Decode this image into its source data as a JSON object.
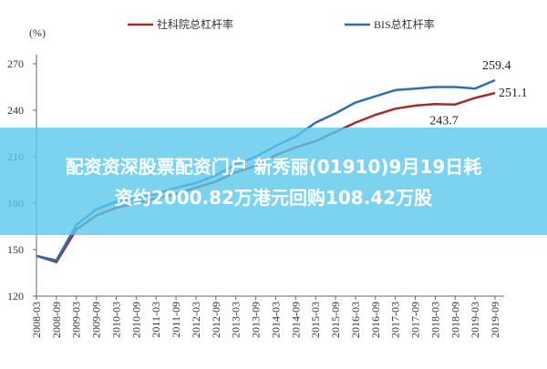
{
  "chart_data": {
    "type": "line",
    "y_unit": "(%)",
    "categories": [
      "2008-03",
      "2008-09",
      "2009-03",
      "2009-09",
      "2010-03",
      "2010-09",
      "2011-03",
      "2011-09",
      "2012-03",
      "2012-09",
      "2013-03",
      "2013-09",
      "2014-03",
      "2014-09",
      "2015-03",
      "2015-09",
      "2016-03",
      "2016-09",
      "2017-03",
      "2017-09",
      "2018-03",
      "2018-09",
      "2019-03",
      "2019-09"
    ],
    "series": [
      {
        "name": "社科院总杠杆率",
        "color": "#a52a2a",
        "values": [
          146,
          142,
          163,
          172,
          177,
          180,
          183,
          186,
          190,
          194,
          200,
          204,
          211,
          216,
          220,
          226,
          232,
          237,
          241,
          243,
          244,
          243.7,
          248,
          251.1
        ]
      },
      {
        "name": "BIS总杠杆率",
        "color": "#2f6db5",
        "values": [
          146,
          143,
          166,
          176,
          181,
          183,
          186,
          190,
          193,
          198,
          205,
          210,
          217,
          223,
          232,
          238,
          245,
          249,
          253,
          254,
          255,
          255,
          254,
          259.4
        ]
      }
    ],
    "ylim": [
      120,
      270
    ],
    "yticks": [
      120,
      150,
      180,
      210,
      240,
      270
    ],
    "banner": [
      "配资资深股票配资门户 新秀丽(01910)9月19日耗",
      "资约2000.82万港元回购108.42万股"
    ]
  }
}
